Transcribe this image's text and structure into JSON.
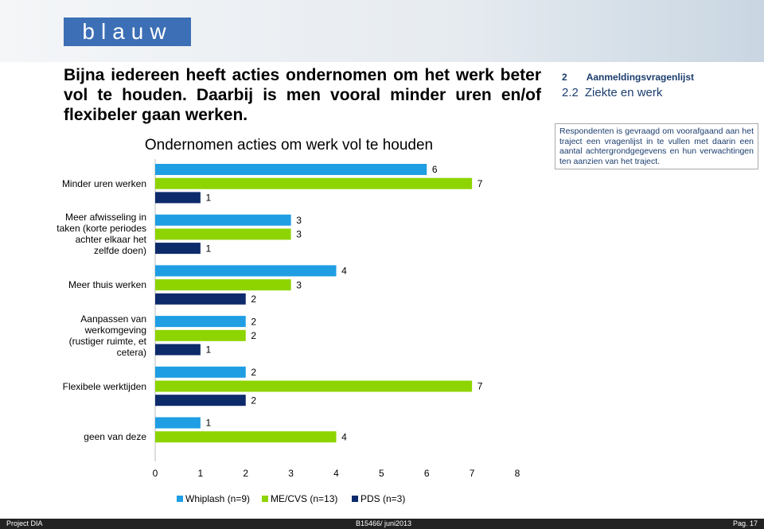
{
  "slide": {
    "logo": "blauw",
    "heading": "Bijna iedereen heeft acties ondernomen om het werk beter vol te houden. Daarbij is men vooral minder uren en/of flexibeler gaan werken.",
    "section_number": "2",
    "section_title": "Aanmeldingsvragenlijst",
    "subsection_number": "2.2",
    "subsection_title": "Ziekte en werk",
    "note": "Respondenten is gevraagd om voorafgaand aan het traject een vragenlijst in te vullen met daarin een aantal achtergrondgegevens en hun verwachtingen ten aanzien van het traject.",
    "footer_left": "Project DIA",
    "footer_center": "B15466/ juni2013",
    "footer_right": "Pag. 17"
  },
  "chart_data": {
    "type": "bar",
    "orientation": "horizontal",
    "title": "Ondernomen acties om werk vol te houden",
    "categories": [
      "Minder uren werken",
      "Meer afwisseling in taken (korte periodes achter elkaar het zelfde doen)",
      "Meer thuis werken",
      "Aanpassen van werkomgeving (rustiger ruimte, et cetera)",
      "Flexibele werktijden",
      "geen van deze"
    ],
    "series": [
      {
        "name": "Whiplash (n=9)",
        "color": "#1f9ee3",
        "values": [
          6,
          3,
          4,
          2,
          2,
          1
        ]
      },
      {
        "name": "ME/CVS (n=13)",
        "color": "#8ed400",
        "values": [
          7,
          3,
          3,
          2,
          7,
          4
        ]
      },
      {
        "name": "PDS (n=3)",
        "color": "#0d2a6b",
        "values": [
          1,
          1,
          2,
          1,
          2,
          null
        ]
      }
    ],
    "xlim": [
      0,
      8
    ],
    "xticks": [
      0,
      1,
      2,
      3,
      4,
      5,
      6,
      7,
      8
    ],
    "legend": "bottom"
  }
}
